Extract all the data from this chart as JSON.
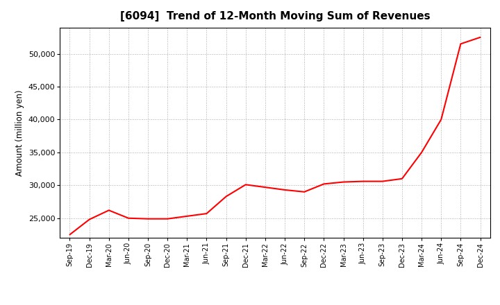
{
  "title": "[6094]  Trend of 12-Month Moving Sum of Revenues",
  "ylabel": "Amount (million yen)",
  "line_color": "#ff0000",
  "line_width": 1.5,
  "background_color": "#ffffff",
  "grid_color": "#aaaaaa",
  "ylim": [
    22000,
    54000
  ],
  "yticks": [
    25000,
    30000,
    35000,
    40000,
    45000,
    50000
  ],
  "x_labels": [
    "Sep-19",
    "Dec-19",
    "Mar-20",
    "Jun-20",
    "Sep-20",
    "Dec-20",
    "Mar-21",
    "Jun-21",
    "Sep-21",
    "Dec-21",
    "Mar-22",
    "Jun-22",
    "Sep-22",
    "Dec-22",
    "Mar-23",
    "Jun-23",
    "Sep-23",
    "Dec-23",
    "Mar-24",
    "Jun-24",
    "Sep-24",
    "Dec-24"
  ],
  "values": [
    22500,
    24800,
    26200,
    25000,
    24900,
    24900,
    25300,
    25700,
    28300,
    30100,
    29700,
    29300,
    29000,
    30200,
    30500,
    30600,
    30600,
    31000,
    35000,
    40000,
    51500,
    52500
  ],
  "figsize": [
    7.2,
    4.4
  ],
  "dpi": 100
}
